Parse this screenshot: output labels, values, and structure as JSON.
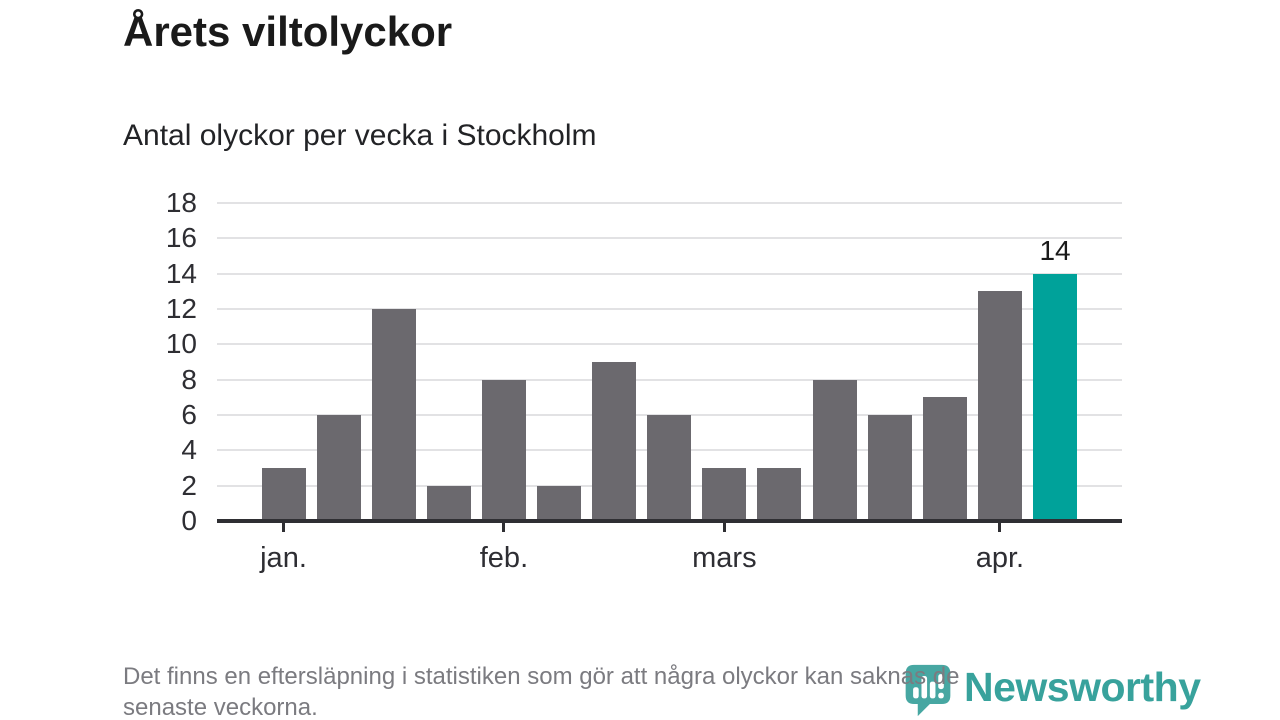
{
  "title": "Årets viltolyckor",
  "subtitle": "Antal olyckor per vecka i Stockholm",
  "footer": {
    "lines": [
      "Det finns en eftersläpning i statistiken som gör att några olyckor kan saknas de",
      "senaste veckorna."
    ]
  },
  "logo": {
    "brand": "Newsworthy",
    "icon": "newsworthy-barchart-bubble-icon"
  },
  "colors": {
    "bar": "#6b696e",
    "highlight": "#00a29a",
    "gridline": "#e2e2e4",
    "axis": "#2f2f33",
    "title_text": "#1a1a1a",
    "footer_text": "#7b7b80",
    "logo_teal": "#38a29c",
    "logo_icon_teal": "#47a7a2"
  },
  "chart_data": {
    "type": "bar",
    "title": "Årets viltolyckor",
    "subtitle": "Antal olyckor per vecka i Stockholm",
    "unit": "olyckor per vecka",
    "values": [
      3,
      6,
      12,
      2,
      8,
      2,
      9,
      6,
      3,
      3,
      8,
      6,
      7,
      13,
      14
    ],
    "highlight_index": 14,
    "annotation": {
      "bar_index": 14,
      "label": "14"
    },
    "x_ticks": [
      {
        "label": "jan.",
        "bar_index": 0
      },
      {
        "label": "feb.",
        "bar_index": 4
      },
      {
        "label": "mars",
        "bar_index": 8
      },
      {
        "label": "apr.",
        "bar_index": 13
      }
    ],
    "y_ticks": [
      0,
      2,
      4,
      6,
      8,
      10,
      12,
      14,
      16,
      18
    ],
    "ylim": [
      0,
      18
    ],
    "xlabel": "",
    "ylabel": "",
    "grid": "horizontal",
    "legend": "none"
  }
}
